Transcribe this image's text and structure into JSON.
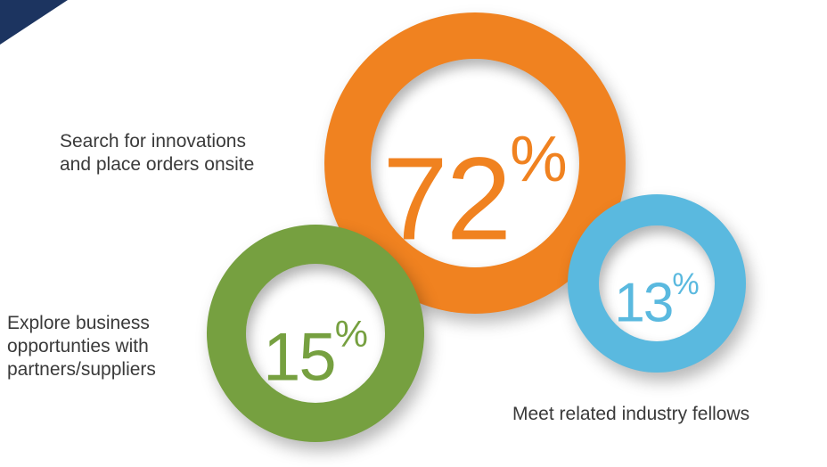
{
  "colors": {
    "corner": "#1c3460",
    "orange": "#f08220",
    "green": "#76a040",
    "blue": "#5ab9df",
    "label": "#3a3a3a"
  },
  "items": [
    {
      "value": "72",
      "unit": "%",
      "label_lines": [
        "Search for innovations",
        "and place orders onsite"
      ]
    },
    {
      "value": "15",
      "unit": "%",
      "label_lines": [
        "Explore business",
        "opportunties with",
        "partners/suppliers"
      ]
    },
    {
      "value": "13",
      "unit": "%",
      "label_lines": [
        "Meet related industry fellows"
      ]
    }
  ]
}
